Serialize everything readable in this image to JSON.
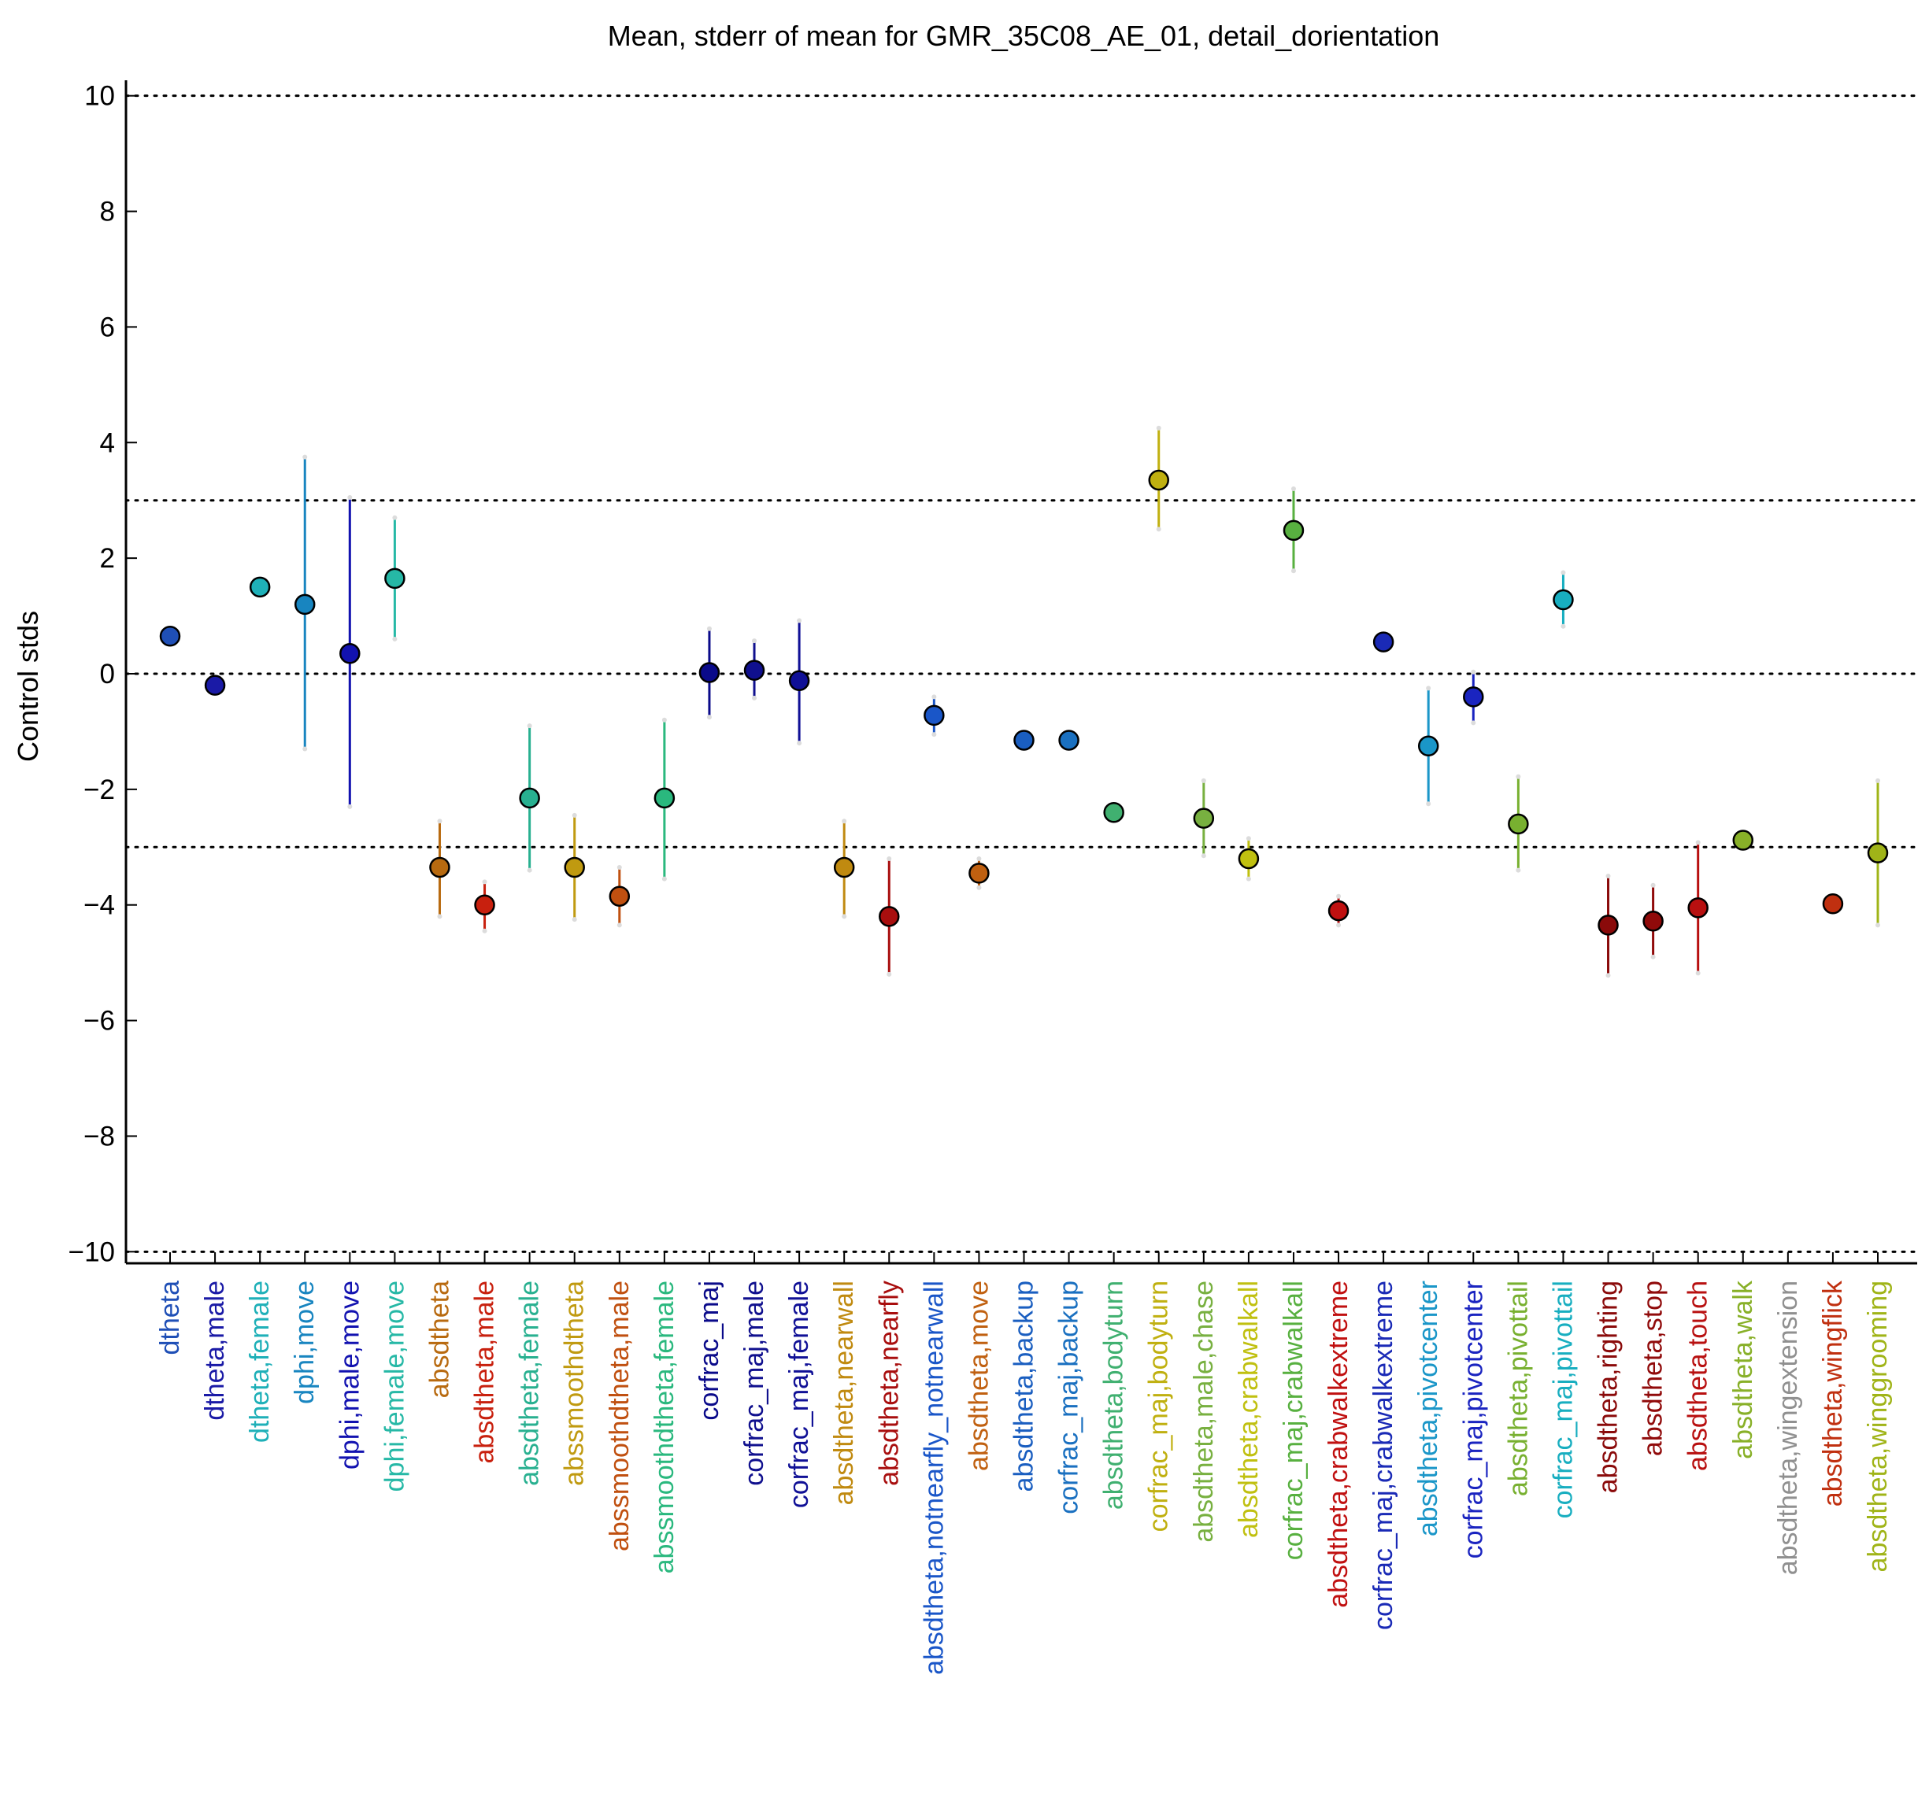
{
  "chart_data": {
    "type": "scatter",
    "title": "Mean, stderr of mean for GMR_35C08_AE_01, detail_dorientation",
    "xlabel": "",
    "ylabel": "Control stds",
    "ylim": [
      -10.2,
      10.2
    ],
    "yticks": [
      10,
      8,
      6,
      4,
      2,
      0,
      -2,
      -4,
      -6,
      -8,
      -10
    ],
    "ytick_labels": [
      "10",
      "8",
      "6",
      "4",
      "2",
      "0",
      "−2",
      "−4",
      "−6",
      "−8",
      "−10"
    ],
    "reference_lines": [
      10,
      3,
      0,
      -3,
      -10
    ],
    "grid": false,
    "points": [
      {
        "label": "dtheta",
        "y": 0.65,
        "lo": 0.65,
        "hi": 0.65,
        "color": "#1f4fb6"
      },
      {
        "label": "dtheta,male",
        "y": -0.2,
        "lo": -0.2,
        "hi": -0.2,
        "color": "#1a1aa6"
      },
      {
        "label": "dtheta,female",
        "y": 1.5,
        "lo": 1.5,
        "hi": 1.5,
        "color": "#1fb0b8"
      },
      {
        "label": "dphi,move",
        "y": 1.2,
        "lo": -1.3,
        "hi": 3.75,
        "color": "#1885c0"
      },
      {
        "label": "dphi,male,move",
        "y": 0.35,
        "lo": -2.3,
        "hi": 3.05,
        "color": "#1212b0"
      },
      {
        "label": "dphi,female,move",
        "y": 1.65,
        "lo": 0.6,
        "hi": 2.7,
        "color": "#26b8a6"
      },
      {
        "label": "absdtheta",
        "y": -3.35,
        "lo": -4.2,
        "hi": -2.55,
        "color": "#b86a10"
      },
      {
        "label": "absdtheta,male",
        "y": -4.0,
        "lo": -4.45,
        "hi": -3.6,
        "color": "#c8200e"
      },
      {
        "label": "absdtheta,female",
        "y": -2.15,
        "lo": -3.4,
        "hi": -0.9,
        "color": "#28b090"
      },
      {
        "label": "abssmoothdtheta",
        "y": -3.35,
        "lo": -4.25,
        "hi": -2.45,
        "color": "#c09a10"
      },
      {
        "label": "abssmoothdtheta,male",
        "y": -3.85,
        "lo": -4.35,
        "hi": -3.35,
        "color": "#c05010"
      },
      {
        "label": "abssmoothdtheta,female",
        "y": -2.15,
        "lo": -3.55,
        "hi": -0.8,
        "color": "#2ab87e"
      },
      {
        "label": "corfrac_maj",
        "y": 0.02,
        "lo": -0.75,
        "hi": 0.78,
        "color": "#0a0a8a"
      },
      {
        "label": "corfrac_maj,male",
        "y": 0.06,
        "lo": -0.42,
        "hi": 0.57,
        "color": "#10108e"
      },
      {
        "label": "corfrac_maj,female",
        "y": -0.12,
        "lo": -1.2,
        "hi": 0.92,
        "color": "#101096"
      },
      {
        "label": "absdtheta,nearwall",
        "y": -3.35,
        "lo": -4.2,
        "hi": -2.55,
        "color": "#c08a10"
      },
      {
        "label": "absdtheta,nearfly",
        "y": -4.2,
        "lo": -5.2,
        "hi": -3.2,
        "color": "#a80e0e"
      },
      {
        "label": "absdtheta,notnearfly_notnearwall",
        "y": -0.72,
        "lo": -1.05,
        "hi": -0.4,
        "color": "#1a56c8"
      },
      {
        "label": "absdtheta,move",
        "y": -3.45,
        "lo": -3.7,
        "hi": -3.2,
        "color": "#c06010"
      },
      {
        "label": "absdtheta,backup",
        "y": -1.15,
        "lo": -1.15,
        "hi": -1.15,
        "color": "#1a5ec0"
      },
      {
        "label": "corfrac_maj,backup",
        "y": -1.15,
        "lo": -1.15,
        "hi": -1.15,
        "color": "#1a70c0"
      },
      {
        "label": "absdtheta,bodyturn",
        "y": -2.4,
        "lo": -2.4,
        "hi": -2.4,
        "color": "#40b070"
      },
      {
        "label": "corfrac_maj,bodyturn",
        "y": 3.35,
        "lo": 2.5,
        "hi": 4.25,
        "color": "#c0b010"
      },
      {
        "label": "absdtheta,male,chase",
        "y": -2.5,
        "lo": -3.15,
        "hi": -1.85,
        "color": "#78b040"
      },
      {
        "label": "absdtheta,crabwalkall",
        "y": -3.2,
        "lo": -3.55,
        "hi": -2.85,
        "color": "#c0c010"
      },
      {
        "label": "corfrac_maj,crabwalkall",
        "y": 2.48,
        "lo": 1.78,
        "hi": 3.2,
        "color": "#58b040"
      },
      {
        "label": "absdtheta,crabwalkextreme",
        "y": -4.1,
        "lo": -4.35,
        "hi": -3.85,
        "color": "#c01010"
      },
      {
        "label": "corfrac_maj,crabwalkextreme",
        "y": 0.55,
        "lo": 0.55,
        "hi": 0.55,
        "color": "#1a2ab6"
      },
      {
        "label": "absdtheta,pivotcenter",
        "y": -1.25,
        "lo": -2.25,
        "hi": -0.25,
        "color": "#1a96c8"
      },
      {
        "label": "corfrac_maj,pivotcenter",
        "y": -0.4,
        "lo": -0.85,
        "hi": 0.03,
        "color": "#1a24c0"
      },
      {
        "label": "absdtheta,pivottail",
        "y": -2.6,
        "lo": -3.4,
        "hi": -1.78,
        "color": "#78b030"
      },
      {
        "label": "corfrac_maj,pivottail",
        "y": 1.28,
        "lo": 0.82,
        "hi": 1.75,
        "color": "#18aec0"
      },
      {
        "label": "absdtheta,righting",
        "y": -4.35,
        "lo": -5.22,
        "hi": -3.5,
        "color": "#8a0a0a"
      },
      {
        "label": "absdtheta,stop",
        "y": -4.28,
        "lo": -4.9,
        "hi": -3.66,
        "color": "#900a0a"
      },
      {
        "label": "absdtheta,touch",
        "y": -4.05,
        "lo": -5.18,
        "hi": -2.92,
        "color": "#b81010"
      },
      {
        "label": "absdtheta,walk",
        "y": -2.88,
        "lo": -2.88,
        "hi": -2.88,
        "color": "#88b028"
      },
      {
        "label": "absdtheta,wingextension",
        "y": null,
        "lo": null,
        "hi": null,
        "color": "#909090"
      },
      {
        "label": "absdtheta,wingflick",
        "y": -3.98,
        "lo": -3.98,
        "hi": -3.98,
        "color": "#c03010"
      },
      {
        "label": "absdtheta,winggrooming",
        "y": -3.1,
        "lo": -4.35,
        "hi": -1.85,
        "color": "#a0b418"
      }
    ]
  }
}
